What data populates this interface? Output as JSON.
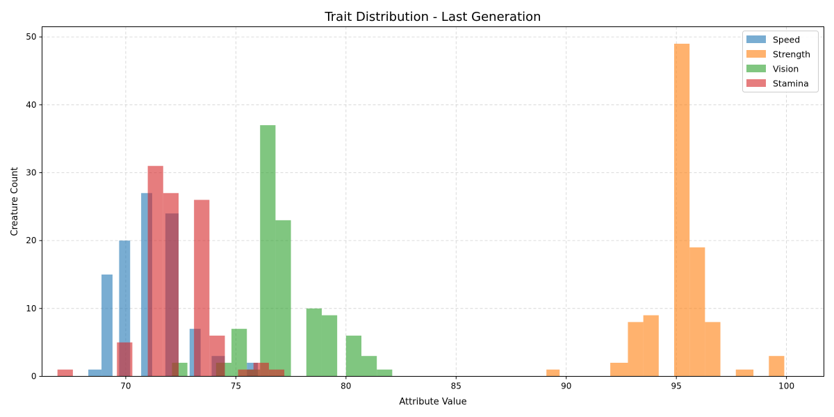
{
  "chart_data": {
    "type": "histogram",
    "title": "Trait Distribution - Last Generation",
    "xlabel": "Attribute Value",
    "ylabel": "Creature Count",
    "xlim": [
      66.2,
      101.7
    ],
    "ylim": [
      0,
      51.5
    ],
    "xticks": [
      70,
      75,
      80,
      85,
      90,
      95,
      100
    ],
    "yticks": [
      0,
      10,
      20,
      30,
      40,
      50
    ],
    "grid": true,
    "legend_position": "top-right",
    "series": [
      {
        "name": "Speed",
        "color": "#1f77b4",
        "bins": [
          {
            "x0": 68.3,
            "x1": 68.9,
            "count": 1
          },
          {
            "x0": 68.9,
            "x1": 69.4,
            "count": 15
          },
          {
            "x0": 69.7,
            "x1": 70.2,
            "count": 20
          },
          {
            "x0": 70.7,
            "x1": 71.2,
            "count": 27
          },
          {
            "x0": 71.8,
            "x1": 72.4,
            "count": 24
          },
          {
            "x0": 72.9,
            "x1": 73.4,
            "count": 7
          },
          {
            "x0": 73.9,
            "x1": 74.5,
            "count": 3
          },
          {
            "x0": 75.5,
            "x1": 76.0,
            "count": 2
          }
        ]
      },
      {
        "name": "Strength",
        "color": "#ff7f0e",
        "bins": [
          {
            "x0": 89.1,
            "x1": 89.7,
            "count": 1
          },
          {
            "x0": 92.0,
            "x1": 92.8,
            "count": 2
          },
          {
            "x0": 92.8,
            "x1": 93.5,
            "count": 8
          },
          {
            "x0": 93.5,
            "x1": 94.2,
            "count": 9
          },
          {
            "x0": 94.9,
            "x1": 95.6,
            "count": 49
          },
          {
            "x0": 95.6,
            "x1": 96.3,
            "count": 19
          },
          {
            "x0": 96.3,
            "x1": 97.0,
            "count": 8
          },
          {
            "x0": 97.7,
            "x1": 98.5,
            "count": 1
          },
          {
            "x0": 99.2,
            "x1": 99.9,
            "count": 3
          }
        ]
      },
      {
        "name": "Vision",
        "color": "#2ca02c",
        "bins": [
          {
            "x0": 72.1,
            "x1": 72.8,
            "count": 2
          },
          {
            "x0": 74.1,
            "x1": 74.8,
            "count": 2
          },
          {
            "x0": 74.8,
            "x1": 75.5,
            "count": 7
          },
          {
            "x0": 75.5,
            "x1": 76.1,
            "count": 1
          },
          {
            "x0": 76.1,
            "x1": 76.8,
            "count": 37
          },
          {
            "x0": 76.8,
            "x1": 77.5,
            "count": 23
          },
          {
            "x0": 78.2,
            "x1": 78.9,
            "count": 10
          },
          {
            "x0": 78.9,
            "x1": 79.6,
            "count": 9
          },
          {
            "x0": 80.0,
            "x1": 80.7,
            "count": 6
          },
          {
            "x0": 80.7,
            "x1": 81.4,
            "count": 3
          },
          {
            "x0": 81.4,
            "x1": 82.1,
            "count": 1
          }
        ]
      },
      {
        "name": "Stamina",
        "color": "#d62728",
        "bins": [
          {
            "x0": 66.9,
            "x1": 67.6,
            "count": 1
          },
          {
            "x0": 69.6,
            "x1": 70.3,
            "count": 5
          },
          {
            "x0": 71.0,
            "x1": 71.7,
            "count": 31
          },
          {
            "x0": 71.7,
            "x1": 72.4,
            "count": 27
          },
          {
            "x0": 73.1,
            "x1": 73.8,
            "count": 26
          },
          {
            "x0": 73.8,
            "x1": 74.5,
            "count": 6
          },
          {
            "x0": 75.1,
            "x1": 75.8,
            "count": 1
          },
          {
            "x0": 75.8,
            "x1": 76.5,
            "count": 2
          },
          {
            "x0": 76.5,
            "x1": 77.2,
            "count": 1
          }
        ]
      }
    ]
  }
}
